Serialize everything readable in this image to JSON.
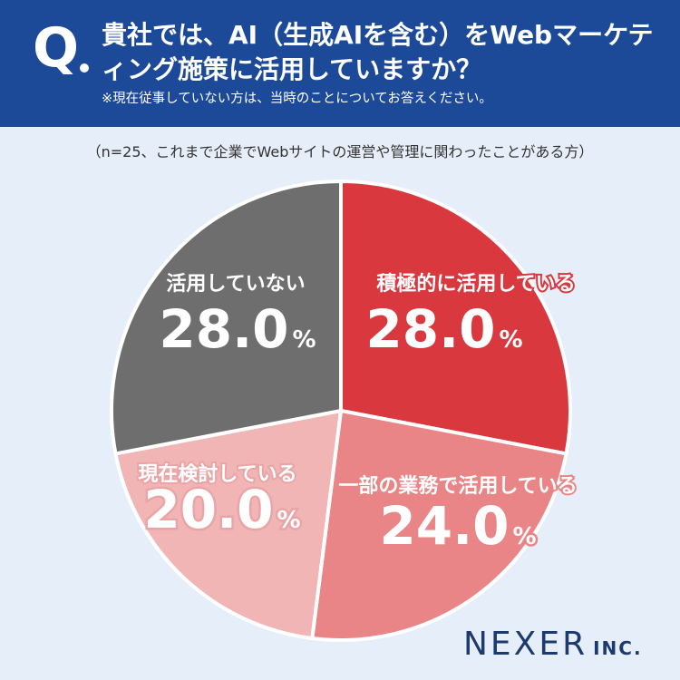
{
  "header": {
    "q_mark": "Q",
    "question": "貴社では、AI（生成AIを含む）をWebマーケティング施策に活用していますか？",
    "note": "※現在従事していない方は、当時のことについてお答えください。"
  },
  "sample_note": "（n=25、これまで企業でWebサイトの運営や管理に関わったことがある方）",
  "chart_data": {
    "type": "pie",
    "slices": [
      {
        "label": "積極的に活用している",
        "value": 28.0,
        "value_text": "28.0",
        "unit": "%",
        "color": "#d9393e"
      },
      {
        "label": "一部の業務で活用している",
        "value": 24.0,
        "value_text": "24.0",
        "unit": "%",
        "color": "#e98587"
      },
      {
        "label": "現在検討している",
        "value": 20.0,
        "value_text": "20.0",
        "unit": "%",
        "color": "#f2b5b5"
      },
      {
        "label": "活用していない",
        "value": 28.0,
        "value_text": "28.0",
        "unit": "%",
        "color": "#6e6e6e"
      }
    ]
  },
  "logo": {
    "main": "NEXER",
    "suffix": "INC."
  }
}
